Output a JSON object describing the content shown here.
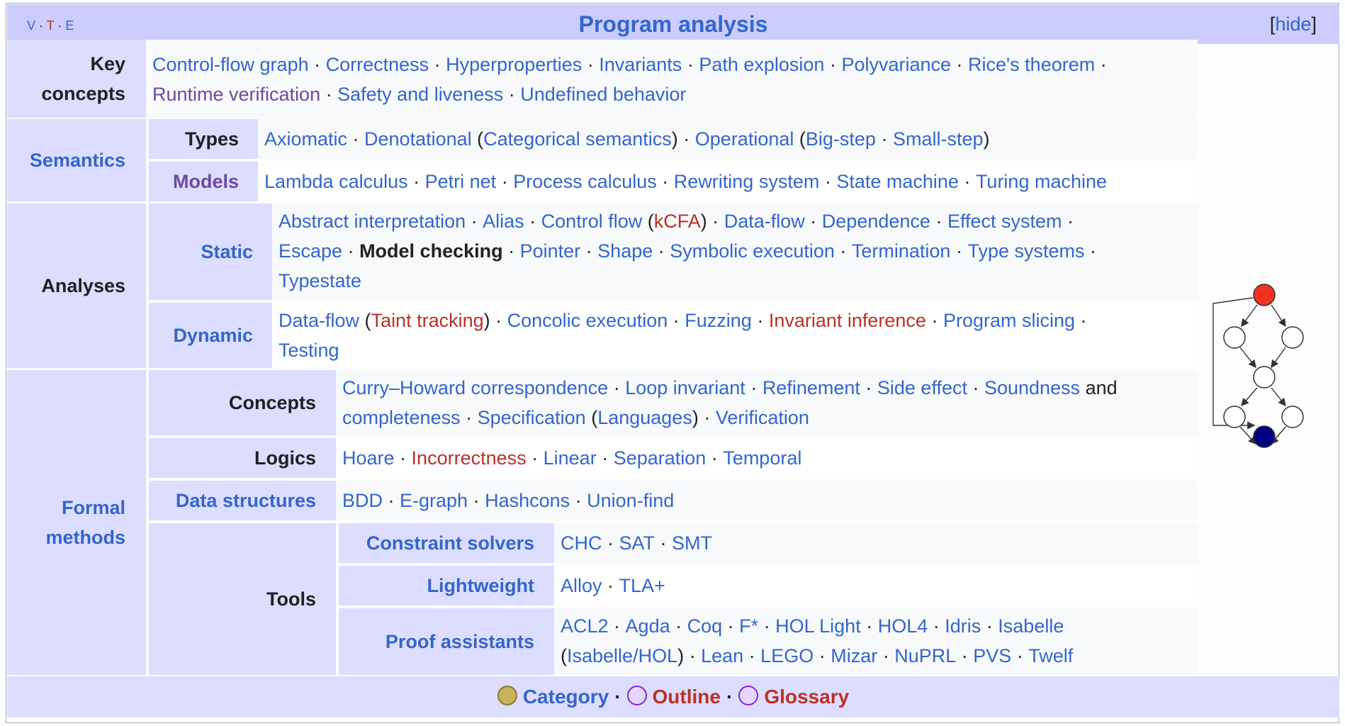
{
  "navbox": {
    "vte": {
      "v": "V",
      "t": "T",
      "e": "E"
    },
    "title": "Program analysis",
    "hide": "[hide]",
    "key_concepts": {
      "label": "Key concepts",
      "line1": [
        "Control-flow graph",
        "Correctness",
        "Hyperproperties",
        "Invariants",
        "Path explosion",
        "Polyvariance",
        "Rice's theorem"
      ],
      "line2": [
        "Runtime verification",
        "Safety and liveness",
        "Undefined behavior"
      ]
    },
    "semantics": {
      "label": "Semantics",
      "types": {
        "label": "Types",
        "axiomatic": "Axiomatic",
        "denotational": "Denotational",
        "categorical": "Categorical semantics",
        "operational": "Operational",
        "bigstep": "Big-step",
        "smallstep": "Small-step"
      },
      "models": {
        "label": "Models",
        "items": [
          "Lambda calculus",
          "Petri net",
          "Process calculus",
          "Rewriting system",
          "State machine",
          "Turing machine"
        ]
      }
    },
    "analyses": {
      "label": "Analyses",
      "static": {
        "label": "Static",
        "abstract": "Abstract interpretation",
        "alias": "Alias",
        "controlflow": "Control flow",
        "kcfa": "kCFA",
        "dataflow": "Data-flow",
        "dependence": "Dependence",
        "effect": "Effect system",
        "escape": "Escape",
        "modelchecking": "Model checking",
        "pointer": "Pointer",
        "shape": "Shape",
        "symbolic": "Symbolic execution",
        "termination": "Termination",
        "typesystems": "Type systems",
        "typestate": "Typestate"
      },
      "dynamic": {
        "label": "Dynamic",
        "dataflow": "Data-flow",
        "taint": "Taint tracking",
        "concolic": "Concolic execution",
        "fuzzing": "Fuzzing",
        "invariant": "Invariant inference",
        "slicing": "Program slicing",
        "testing": "Testing"
      }
    },
    "formal_methods": {
      "label": "Formal methods",
      "concepts": {
        "label": "Concepts",
        "curry": "Curry–Howard correspondence",
        "loop": "Loop invariant",
        "refinement": "Refinement",
        "sideeffect": "Side effect",
        "soundness": "Soundness",
        "and": "and",
        "completeness": "completeness",
        "specification": "Specification",
        "languages": "Languages",
        "verification": "Verification"
      },
      "logics": {
        "label": "Logics",
        "hoare": "Hoare",
        "incorrectness": "Incorrectness",
        "linear": "Linear",
        "separation": "Separation",
        "temporal": "Temporal"
      },
      "data_structures": {
        "label": "Data structures",
        "items": [
          "BDD",
          "E-graph",
          "Hashcons",
          "Union-find"
        ]
      },
      "tools": {
        "label": "Tools",
        "constraint": {
          "label": "Constraint solvers",
          "items": [
            "CHC",
            "SAT",
            "SMT"
          ]
        },
        "lightweight": {
          "label": "Lightweight",
          "items": [
            "Alloy",
            "TLA+"
          ]
        },
        "proof": {
          "label": "Proof assistants",
          "line1": [
            "ACL2",
            "Agda",
            "Coq",
            "F*",
            "HOL Light",
            "HOL4",
            "Idris",
            "Isabelle"
          ],
          "line2": [
            "Isabelle/HOL",
            "Lean",
            "LEGO",
            "Mizar",
            "NuPRL",
            "PVS",
            "Twelf"
          ]
        }
      }
    },
    "footer": {
      "category": "Category",
      "outline": "Outline",
      "glossary": "Glossary"
    },
    "colors": {
      "link": "#3366cc",
      "redlink": "#ba3127",
      "visited": "#6b4ba1",
      "title_bg": "#ccccff",
      "group_bg": "#ddddff"
    }
  }
}
